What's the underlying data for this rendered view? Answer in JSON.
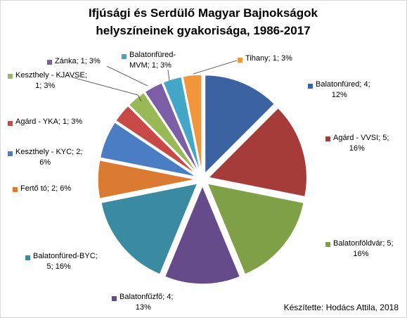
{
  "chart_data": {
    "type": "pie",
    "title_lines": [
      "Ifjúsági és Serdülő Magyar Bajnokságok",
      "helyszíneinek gyakorisága, 1986-2017"
    ],
    "credit": "Készítette: Hodács Attila, 2018",
    "slices": [
      {
        "name": "Balatonfüred",
        "value": 4,
        "percent": "12%",
        "color": "#3b63a1",
        "label_lines": [
          "Balatonfüred; 4;",
          "12%"
        ]
      },
      {
        "name": "Agárd - VVSI",
        "value": 5,
        "percent": "16%",
        "color": "#a53c3a",
        "label_lines": [
          "Agárd - VVSI; 5;",
          "16%"
        ]
      },
      {
        "name": "Balatonföldvár",
        "value": 5,
        "percent": "16%",
        "color": "#80a047",
        "label_lines": [
          "Balatonföldvár; 5;",
          "16%"
        ]
      },
      {
        "name": "Balatonfűzfő",
        "value": 4,
        "percent": "13%",
        "color": "#654b8a",
        "label_lines": [
          "Balatonfűzfő; 4;",
          "13%"
        ]
      },
      {
        "name": "Balatonfüred-BYC",
        "value": 5,
        "percent": "16%",
        "color": "#3a8aa1",
        "label_lines": [
          "Balatonfüred-BYC;",
          "5; 16%"
        ]
      },
      {
        "name": "Fertő tó",
        "value": 2,
        "percent": "6%",
        "color": "#db7a31",
        "label_lines": [
          "Fertő tó; 2; 6%"
        ]
      },
      {
        "name": "Keszthely - KYC",
        "value": 2,
        "percent": "6%",
        "color": "#4a7dc4",
        "label_lines": [
          "Keszthely - KYC; 2;",
          "6%"
        ]
      },
      {
        "name": "Agárd - YKA",
        "value": 1,
        "percent": "3%",
        "color": "#c84a47",
        "label_lines": [
          "Agárd - YKA; 1; 3%"
        ]
      },
      {
        "name": "Keszthely - KJAVSE",
        "value": 1,
        "percent": "3%",
        "color": "#98b955",
        "label_lines": [
          "Keszthely - KJAVSE;",
          "1; 3%"
        ]
      },
      {
        "name": "Zánka",
        "value": 1,
        "percent": "3%",
        "color": "#7c5ea6",
        "label_lines": [
          "Zánka; 1; 3%"
        ]
      },
      {
        "name": "Balatonfüred-MVM",
        "value": 1,
        "percent": "3%",
        "color": "#44a7c7",
        "label_lines": [
          "Balatonfüred-",
          "MVM; 1; 3%"
        ]
      },
      {
        "name": "Tihany",
        "value": 1,
        "percent": "3%",
        "color": "#f2963c",
        "label_lines": [
          "Tihany; 1; 3%"
        ]
      }
    ]
  }
}
